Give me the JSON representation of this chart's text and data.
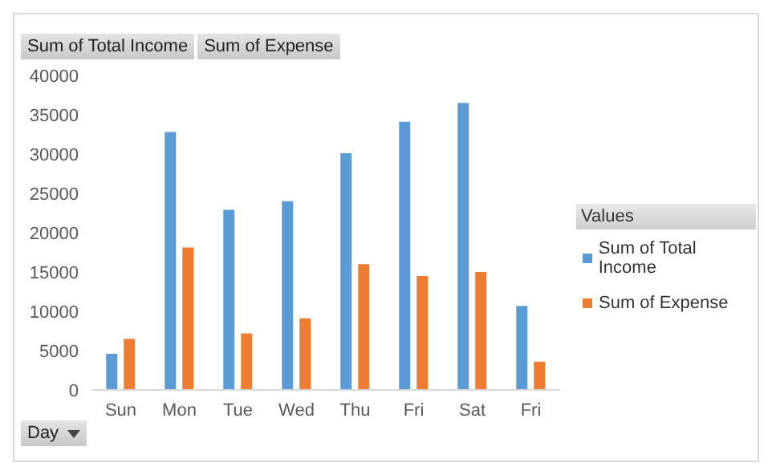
{
  "chart_data": {
    "type": "bar",
    "categories": [
      "Sun",
      "Mon",
      "Tue",
      "Wed",
      "Thu",
      "Fri",
      "Sat",
      "Fri"
    ],
    "series": [
      {
        "name": "Sum of Total Income",
        "color": "#5b9bd5",
        "values": [
          4600,
          32800,
          22900,
          24000,
          30100,
          34100,
          36500,
          10700
        ]
      },
      {
        "name": "Sum of Expense",
        "color": "#ed7d31",
        "values": [
          6500,
          18100,
          7200,
          9100,
          16000,
          14500,
          15000,
          3600
        ]
      }
    ],
    "ylim": [
      0,
      40000
    ],
    "yticks": [
      0,
      5000,
      10000,
      15000,
      20000,
      25000,
      30000,
      35000,
      40000
    ],
    "grid": false,
    "legend": "right",
    "legend_title": "Values",
    "annotations": [
      "Sum of Total Income",
      "Sum of Expense",
      "Day"
    ]
  }
}
